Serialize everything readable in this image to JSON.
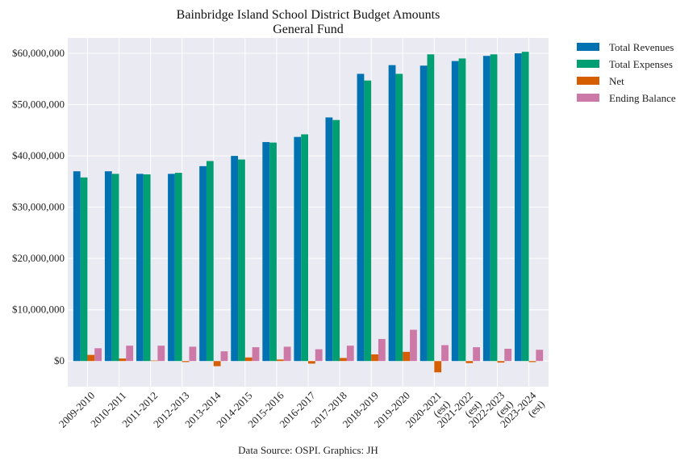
{
  "chart_data": {
    "type": "bar",
    "title": "Bainbridge Island School District Budget Amounts",
    "subtitle": "General Fund",
    "xlabel": "",
    "ylabel": "",
    "ylim": [
      -5000000,
      63000000
    ],
    "yticks": [
      0,
      10000000,
      20000000,
      30000000,
      40000000,
      50000000,
      60000000
    ],
    "ytick_labels": [
      "$0",
      "$10,000,000",
      "$20,000,000",
      "$30,000,000",
      "$40,000,000",
      "$50,000,000",
      "$60,000,000"
    ],
    "grid": true,
    "legend_position": "outside-top-right",
    "categories": [
      "2009-2010",
      "2010-2011",
      "2011-2012",
      "2012-2013",
      "2013-2014",
      "2014-2015",
      "2015-2016",
      "2016-2017",
      "2017-2018",
      "2018-2019",
      "2019-2020",
      "2020-2021 (est)",
      "2021-2022 (est)",
      "2022-2023 (est)",
      "2023-2024 (est)"
    ],
    "category_label_lines": [
      [
        "2009-2010"
      ],
      [
        "2010-2011"
      ],
      [
        "2011-2012"
      ],
      [
        "2012-2013"
      ],
      [
        "2013-2014"
      ],
      [
        "2014-2015"
      ],
      [
        "2015-2016"
      ],
      [
        "2016-2017"
      ],
      [
        "2017-2018"
      ],
      [
        "2018-2019"
      ],
      [
        "2019-2020"
      ],
      [
        "2020-2021",
        "(est)"
      ],
      [
        "2021-2022",
        "(est)"
      ],
      [
        "2022-2023",
        "(est)"
      ],
      [
        "2023-2024",
        "(est)"
      ]
    ],
    "series": [
      {
        "name": "Total Revenues",
        "color": "#0072b2",
        "values": [
          37000000,
          37000000,
          36500000,
          36500000,
          38000000,
          40000000,
          42700000,
          43700000,
          47500000,
          56000000,
          57700000,
          57600000,
          58500000,
          59500000,
          60000000
        ]
      },
      {
        "name": "Total Expenses",
        "color": "#009e73",
        "values": [
          35800000,
          36500000,
          36400000,
          36700000,
          39000000,
          39300000,
          42600000,
          44200000,
          47000000,
          54700000,
          56000000,
          59800000,
          59000000,
          59800000,
          60300000
        ]
      },
      {
        "name": "Net",
        "color": "#d55e00",
        "values": [
          1200000,
          500000,
          100000,
          -200000,
          -1000000,
          700000,
          300000,
          -500000,
          600000,
          1300000,
          1800000,
          -2200000,
          -400000,
          -300000,
          -200000
        ]
      },
      {
        "name": "Ending Balance",
        "color": "#cc79a7",
        "values": [
          2500000,
          3000000,
          3000000,
          2800000,
          1900000,
          2700000,
          2800000,
          2300000,
          3000000,
          4300000,
          6100000,
          3100000,
          2700000,
          2400000,
          2200000
        ]
      }
    ]
  },
  "footer": {
    "source": "Data Source: OSPI. Graphics: JH"
  }
}
